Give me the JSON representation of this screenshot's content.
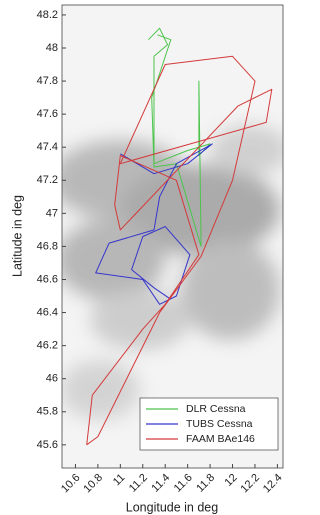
{
  "chart_data": {
    "type": "line",
    "x_label": "Longitude in deg",
    "y_label": "Latitude in deg",
    "xlim": [
      10.48,
      12.45
    ],
    "ylim": [
      45.46,
      48.26
    ],
    "xticks": [
      10.6,
      10.8,
      11,
      11.2,
      11.4,
      11.6,
      11.8,
      12,
      12.2,
      12.4
    ],
    "yticks": [
      45.6,
      45.8,
      46,
      46.2,
      46.4,
      46.6,
      46.8,
      47,
      47.2,
      47.4,
      47.6,
      47.8,
      48,
      48.2
    ],
    "legend": "lower right",
    "series": [
      {
        "name": "DLR Cessna",
        "color": "#4cc44c",
        "x": [
          11.25,
          11.35,
          11.42,
          11.3,
          11.3,
          11.6,
          11.8,
          11.7,
          11.7,
          11.72,
          11.5,
          11.3,
          11.28,
          11.45,
          11.33
        ],
        "values": [
          48.05,
          48.12,
          48.02,
          47.95,
          47.3,
          47.38,
          47.42,
          47.35,
          47.8,
          46.8,
          47.3,
          47.28,
          47.7,
          48.05,
          48.08
        ]
      },
      {
        "name": "TUBS Cessna",
        "color": "#3535cc",
        "x": [
          11.0,
          11.3,
          11.6,
          11.82,
          11.5,
          11.35,
          11.3,
          10.9,
          10.78,
          11.2,
          11.35,
          11.5,
          11.62,
          11.4,
          11.2,
          11.1,
          11.3,
          11.45
        ],
        "values": [
          47.36,
          47.24,
          47.3,
          47.42,
          47.3,
          47.1,
          46.9,
          46.82,
          46.64,
          46.6,
          46.45,
          46.5,
          46.75,
          46.92,
          46.86,
          46.66,
          46.55,
          46.48
        ]
      },
      {
        "name": "FAAM BAe146",
        "color": "#d43a3a",
        "x": [
          10.7,
          10.75,
          11.2,
          11.4,
          11.7,
          11.5,
          11.0,
          10.95,
          11.0,
          12.05,
          12.35,
          12.3,
          11.0,
          11.4,
          12.0,
          12.2,
          12.0,
          11.72,
          11.35,
          10.8,
          10.7
        ],
        "values": [
          45.6,
          45.9,
          46.3,
          46.45,
          46.75,
          47.2,
          47.35,
          47.05,
          46.9,
          47.65,
          47.75,
          47.55,
          47.3,
          47.9,
          47.95,
          47.8,
          47.2,
          46.74,
          46.4,
          45.65,
          45.6
        ]
      }
    ]
  }
}
